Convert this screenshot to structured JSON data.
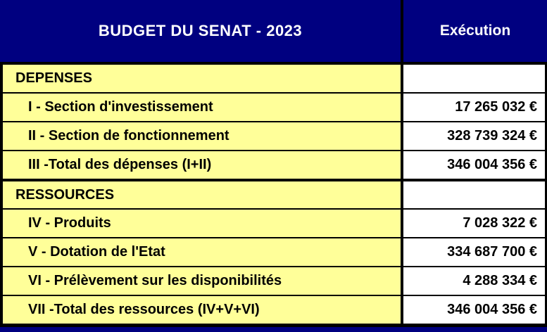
{
  "colors": {
    "header_bg": "#000080",
    "header_text": "#FFFFFF",
    "label_bg": "#FFFF99",
    "value_bg": "#FFFFFF",
    "border": "#000000",
    "body_text": "#000000"
  },
  "header": {
    "title": "BUDGET DU SENAT - 2023",
    "value_column_label": "Exécution"
  },
  "table": {
    "rows": [
      {
        "type": "section",
        "label": "DEPENSES",
        "value": ""
      },
      {
        "type": "item",
        "label": "I - Section d'investissement",
        "value": "17 265 032 €"
      },
      {
        "type": "item",
        "label": "II - Section de fonctionnement",
        "value": "328 739 324 €"
      },
      {
        "type": "item",
        "label": "III -Total des dépenses (I+II)",
        "value": "346 004 356 €"
      },
      {
        "type": "section",
        "label": "RESSOURCES",
        "value": "",
        "thick_top": true
      },
      {
        "type": "item",
        "label": "IV - Produits",
        "value": "7 028 322 €"
      },
      {
        "type": "item",
        "label": "V - Dotation de l'Etat",
        "value": "334 687 700 €"
      },
      {
        "type": "item",
        "label": "VI - Prélèvement sur les disponibilités",
        "value": "4 288 334 €"
      },
      {
        "type": "item",
        "label": "VII -Total des ressources (IV+V+VI)",
        "value": "346 004 356 €"
      }
    ]
  }
}
